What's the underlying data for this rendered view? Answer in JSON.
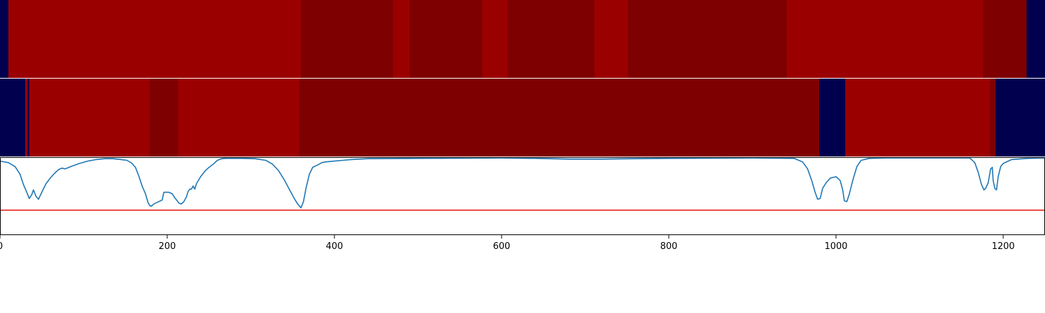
{
  "chart_data": [
    {
      "type": "heatmap",
      "x_range": [
        0,
        1250
      ],
      "segments": [
        {
          "start": 0,
          "end": 10,
          "value": "low"
        },
        {
          "start": 10,
          "end": 360,
          "value": "high"
        },
        {
          "start": 360,
          "end": 470,
          "value": "mid"
        },
        {
          "start": 470,
          "end": 490,
          "value": "high"
        },
        {
          "start": 490,
          "end": 577,
          "value": "mid"
        },
        {
          "start": 577,
          "end": 607,
          "value": "high"
        },
        {
          "start": 607,
          "end": 711,
          "value": "mid"
        },
        {
          "start": 711,
          "end": 751,
          "value": "high"
        },
        {
          "start": 751,
          "end": 941,
          "value": "mid"
        },
        {
          "start": 941,
          "end": 1176,
          "value": "high"
        },
        {
          "start": 1176,
          "end": 1228,
          "value": "mid"
        },
        {
          "start": 1228,
          "end": 1250,
          "value": "low"
        }
      ]
    },
    {
      "type": "heatmap",
      "x_range": [
        0,
        1250
      ],
      "segments": [
        {
          "start": 0,
          "end": 30,
          "value": "low"
        },
        {
          "start": 30,
          "end": 33,
          "value": "high"
        },
        {
          "start": 33,
          "end": 35,
          "value": "low"
        },
        {
          "start": 35,
          "end": 38,
          "value": "high"
        },
        {
          "start": 38,
          "end": 179,
          "value": "high"
        },
        {
          "start": 179,
          "end": 213,
          "value": "mid"
        },
        {
          "start": 213,
          "end": 358,
          "value": "high"
        },
        {
          "start": 358,
          "end": 980,
          "value": "mid"
        },
        {
          "start": 980,
          "end": 1011,
          "value": "low"
        },
        {
          "start": 1011,
          "end": 1184,
          "value": "high"
        },
        {
          "start": 1184,
          "end": 1191,
          "value": "mid"
        },
        {
          "start": 1191,
          "end": 1250,
          "value": "low"
        }
      ]
    },
    {
      "type": "line",
      "xlim": [
        0,
        1250
      ],
      "ylim": [
        0,
        1
      ],
      "xticks": [
        0,
        200,
        400,
        600,
        800,
        1000,
        1200
      ],
      "threshold": 0.32,
      "series": [
        {
          "points": [
            [
              0,
              0.95
            ],
            [
              10,
              0.93
            ],
            [
              18,
              0.88
            ],
            [
              24,
              0.78
            ],
            [
              28,
              0.65
            ],
            [
              32,
              0.55
            ],
            [
              35,
              0.47
            ],
            [
              38,
              0.52
            ],
            [
              40,
              0.58
            ],
            [
              43,
              0.5
            ],
            [
              46,
              0.46
            ],
            [
              50,
              0.55
            ],
            [
              55,
              0.66
            ],
            [
              60,
              0.73
            ],
            [
              65,
              0.79
            ],
            [
              70,
              0.84
            ],
            [
              74,
              0.86
            ],
            [
              78,
              0.85
            ],
            [
              85,
              0.88
            ],
            [
              95,
              0.92
            ],
            [
              105,
              0.95
            ],
            [
              115,
              0.97
            ],
            [
              125,
              0.98
            ],
            [
              135,
              0.98
            ],
            [
              145,
              0.97
            ],
            [
              152,
              0.96
            ],
            [
              158,
              0.92
            ],
            [
              162,
              0.87
            ],
            [
              166,
              0.76
            ],
            [
              170,
              0.63
            ],
            [
              174,
              0.53
            ],
            [
              177,
              0.42
            ],
            [
              179,
              0.38
            ],
            [
              181,
              0.37
            ],
            [
              184,
              0.4
            ],
            [
              190,
              0.43
            ],
            [
              194,
              0.45
            ],
            [
              196,
              0.55
            ],
            [
              202,
              0.55
            ],
            [
              206,
              0.53
            ],
            [
              209,
              0.48
            ],
            [
              212,
              0.44
            ],
            [
              214,
              0.41
            ],
            [
              217,
              0.4
            ],
            [
              220,
              0.43
            ],
            [
              223,
              0.49
            ],
            [
              225,
              0.56
            ],
            [
              227,
              0.59
            ],
            [
              229,
              0.59
            ],
            [
              231,
              0.63
            ],
            [
              233,
              0.59
            ],
            [
              235,
              0.66
            ],
            [
              240,
              0.75
            ],
            [
              245,
              0.82
            ],
            [
              250,
              0.87
            ],
            [
              255,
              0.91
            ],
            [
              260,
              0.96
            ],
            [
              265,
              0.98
            ],
            [
              270,
              0.985
            ],
            [
              280,
              0.985
            ],
            [
              290,
              0.985
            ],
            [
              305,
              0.98
            ],
            [
              318,
              0.96
            ],
            [
              326,
              0.91
            ],
            [
              333,
              0.83
            ],
            [
              340,
              0.71
            ],
            [
              347,
              0.57
            ],
            [
              352,
              0.47
            ],
            [
              356,
              0.4
            ],
            [
              360,
              0.35
            ],
            [
              363,
              0.43
            ],
            [
              366,
              0.6
            ],
            [
              370,
              0.78
            ],
            [
              374,
              0.87
            ],
            [
              380,
              0.9
            ],
            [
              385,
              0.93
            ],
            [
              390,
              0.94
            ],
            [
              400,
              0.95
            ],
            [
              410,
              0.96
            ],
            [
              420,
              0.97
            ],
            [
              440,
              0.98
            ],
            [
              500,
              0.985
            ],
            [
              600,
              0.99
            ],
            [
              640,
              0.985
            ],
            [
              680,
              0.975
            ],
            [
              720,
              0.975
            ],
            [
              760,
              0.98
            ],
            [
              800,
              0.985
            ],
            [
              900,
              0.99
            ],
            [
              950,
              0.985
            ],
            [
              960,
              0.94
            ],
            [
              966,
              0.85
            ],
            [
              971,
              0.7
            ],
            [
              975,
              0.55
            ],
            [
              978,
              0.46
            ],
            [
              981,
              0.47
            ],
            [
              984,
              0.6
            ],
            [
              988,
              0.67
            ],
            [
              993,
              0.73
            ],
            [
              1000,
              0.75
            ],
            [
              1005,
              0.7
            ],
            [
              1008,
              0.58
            ],
            [
              1010,
              0.44
            ],
            [
              1013,
              0.43
            ],
            [
              1016,
              0.53
            ],
            [
              1020,
              0.7
            ],
            [
              1025,
              0.88
            ],
            [
              1030,
              0.96
            ],
            [
              1040,
              0.985
            ],
            [
              1060,
              0.99
            ],
            [
              1100,
              0.99
            ],
            [
              1160,
              0.99
            ],
            [
              1166,
              0.93
            ],
            [
              1170,
              0.81
            ],
            [
              1174,
              0.65
            ],
            [
              1177,
              0.58
            ],
            [
              1179,
              0.6
            ],
            [
              1182,
              0.67
            ],
            [
              1185,
              0.85
            ],
            [
              1187,
              0.87
            ],
            [
              1188,
              0.7
            ],
            [
              1190,
              0.6
            ],
            [
              1192,
              0.58
            ],
            [
              1194,
              0.75
            ],
            [
              1197,
              0.88
            ],
            [
              1200,
              0.92
            ],
            [
              1210,
              0.97
            ],
            [
              1230,
              0.985
            ],
            [
              1250,
              0.99
            ]
          ]
        }
      ]
    }
  ],
  "colors": {
    "low": "#00004f",
    "high": "#9b0000",
    "mid": "#7f0000",
    "line": "#1f77b4",
    "threshold": "#e8261c",
    "axis": "#000000"
  }
}
